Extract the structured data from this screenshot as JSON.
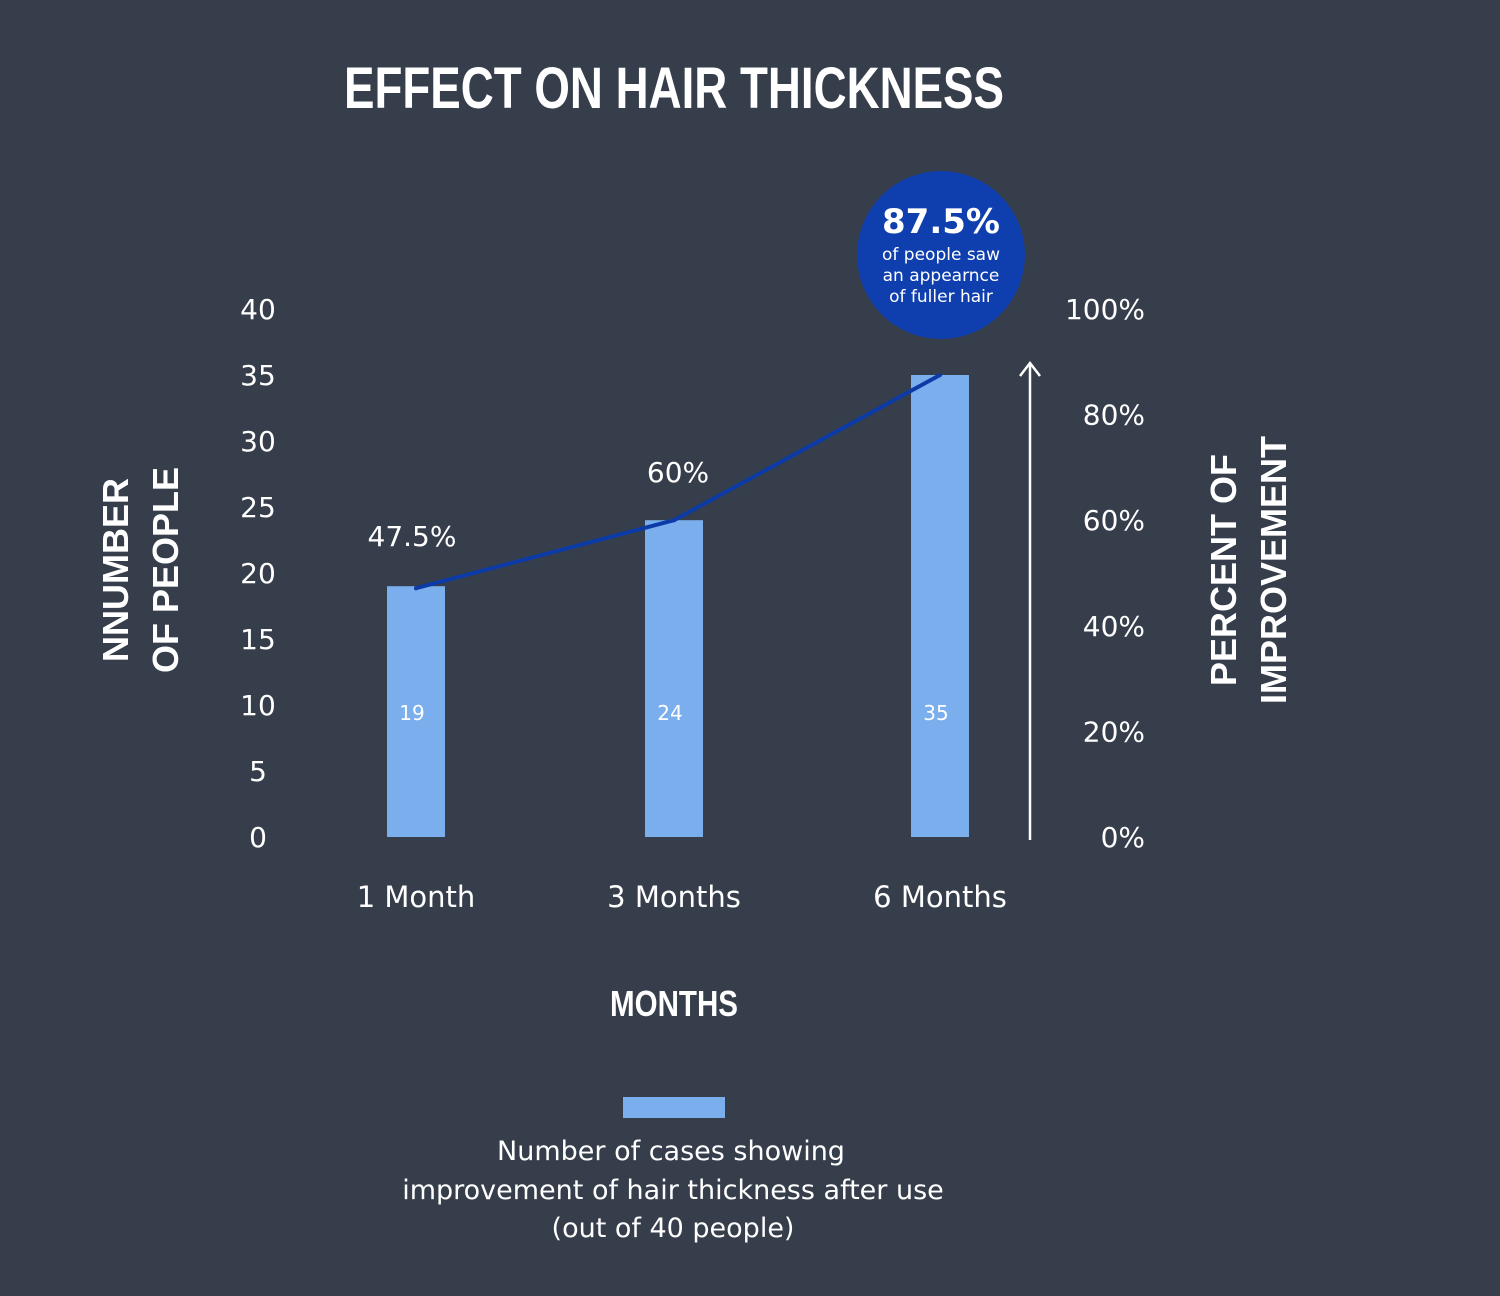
{
  "chart_data": {
    "type": "bar",
    "title": "EFFECT ON HAIR THICKNESS",
    "xlabel": "MONTHS",
    "ylabel_lines": [
      "NNUMBER",
      "OF PEOPLE"
    ],
    "y2label_lines": [
      "PERCENT OF",
      "IMPROVEMENT"
    ],
    "categories": [
      "1 Month",
      "3 Months",
      "6 Months"
    ],
    "series": [
      {
        "name": "Number of cases showing improvement of hair thickness after use (out of 40 people)",
        "values": [
          19,
          24,
          35
        ],
        "value_labels": [
          "19",
          "24",
          "35"
        ],
        "color": "#7aaeec"
      },
      {
        "values": [
          47.5,
          60,
          87.5
        ],
        "point_labels": [
          "47.5%",
          "60%"
        ],
        "color": "#0c3ba7",
        "axis": "right"
      }
    ],
    "ylim": [
      0,
      40
    ],
    "y2lim": [
      0,
      100
    ],
    "yticks": [
      "0",
      "5",
      "10",
      "15",
      "20",
      "25",
      "30",
      "35",
      "40"
    ],
    "y2ticks": [
      "0%",
      "20%",
      "40%",
      "60%",
      "80%",
      "100%"
    ],
    "grid": false,
    "legend_position": "bottom-center",
    "callout": {
      "value": "87.5%",
      "lines": [
        "of people saw",
        "an appearnce",
        "of fuller hair"
      ],
      "color": "#0f3fae"
    },
    "legend_lines": [
      "Number of cases showing",
      "improvement of hair thickness after use",
      "(out of 40 people)"
    ],
    "background": "#363e4b"
  }
}
